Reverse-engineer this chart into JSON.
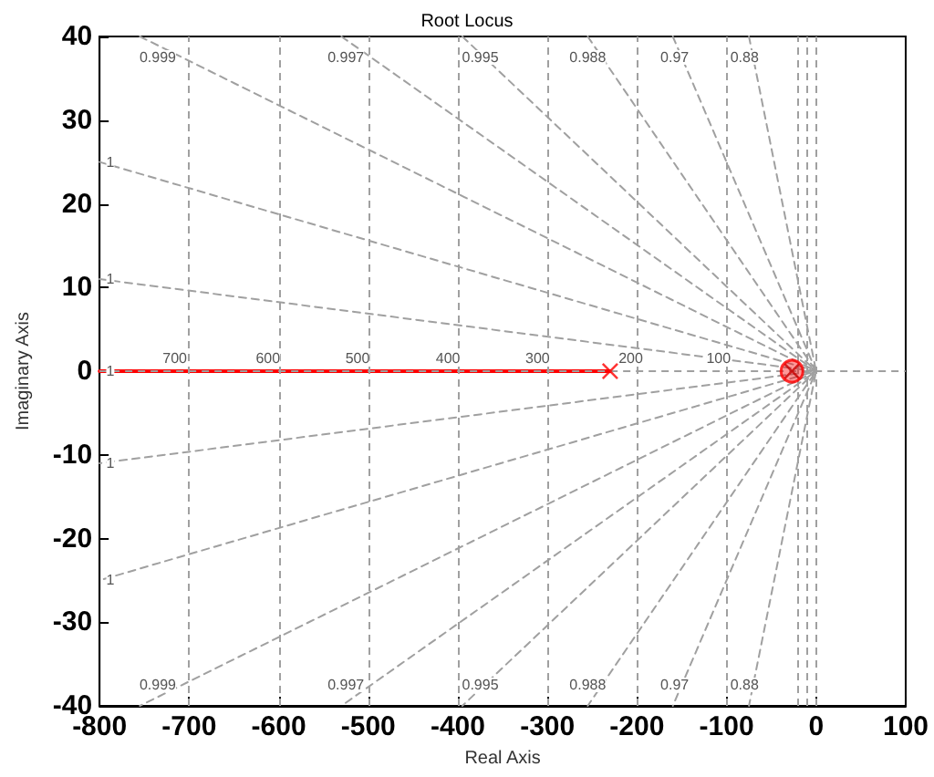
{
  "chart_data": {
    "type": "line",
    "title": "Root Locus",
    "xlabel": "Real Axis",
    "ylabel": "Imaginary Axis",
    "xlim": [
      -800,
      100
    ],
    "xticks": [
      -800,
      -700,
      -600,
      -500,
      -400,
      -300,
      -200,
      -100,
      0,
      100
    ],
    "ylim": [
      -40,
      40
    ],
    "yticks": [
      -40,
      -30,
      -20,
      -10,
      0,
      10,
      20,
      30,
      40
    ],
    "grid": false,
    "series": [
      {
        "type": "line",
        "color": "#a0a0a0",
        "line_style": "dashed",
        "marker": "none",
        "x": [
          -755,
          0,
          -755
        ],
        "values": [
          40,
          0,
          -40
        ]
      },
      {
        "type": "line",
        "color": "#a0a0a0",
        "line_style": "dashed",
        "marker": "none",
        "x": [
          -530,
          0,
          -530
        ],
        "values": [
          40,
          0,
          -40
        ]
      },
      {
        "type": "line",
        "color": "#a0a0a0",
        "line_style": "dashed",
        "marker": "none",
        "x": [
          -395,
          0,
          -395
        ],
        "values": [
          40,
          0,
          -40
        ]
      },
      {
        "type": "line",
        "color": "#a0a0a0",
        "line_style": "dashed",
        "marker": "none",
        "x": [
          -255,
          0,
          -255
        ],
        "values": [
          40,
          0,
          -40
        ]
      },
      {
        "type": "line",
        "color": "#a0a0a0",
        "line_style": "dashed",
        "marker": "none",
        "x": [
          -160,
          0,
          -160
        ],
        "values": [
          40,
          0,
          -40
        ]
      },
      {
        "type": "line",
        "color": "#a0a0a0",
        "line_style": "dashed",
        "marker": "none",
        "x": [
          -75,
          0,
          -75
        ],
        "values": [
          40,
          0,
          -40
        ]
      },
      {
        "type": "line",
        "color": "#a0a0a0",
        "line_style": "dashed",
        "marker": "none",
        "x": [
          -800,
          0,
          -800
        ],
        "values": [
          25,
          0,
          -25
        ]
      },
      {
        "type": "line",
        "color": "#a0a0a0",
        "line_style": "dashed",
        "marker": "none",
        "x": [
          -800,
          0,
          -800
        ],
        "values": [
          11,
          0,
          -11
        ]
      },
      {
        "type": "line",
        "color": "#ff0000",
        "line_style": "solid",
        "marker": "none",
        "x": [
          -800,
          -230
        ],
        "values": [
          0,
          0
        ]
      },
      {
        "type": "scatter",
        "color": "#ff0000",
        "marker": "cross",
        "x": [
          -230
        ],
        "values": [
          0
        ]
      },
      {
        "type": "scatter",
        "color": "#ff0000",
        "marker": "circle",
        "x": [
          -27
        ],
        "values": [
          0
        ]
      },
      {
        "type": "scatter",
        "color": "#a00000",
        "marker": "cross",
        "x": [
          -27
        ],
        "values": [
          0
        ]
      }
    ],
    "ref_lines": [
      {
        "axis": "y",
        "value": 0,
        "color": "#a0a0a0",
        "line_style": "dashed"
      },
      {
        "axis": "x",
        "value": -700,
        "color": "#a0a0a0",
        "line_style": "dashed"
      },
      {
        "axis": "x",
        "value": -600,
        "color": "#a0a0a0",
        "line_style": "dashed"
      },
      {
        "axis": "x",
        "value": -500,
        "color": "#a0a0a0",
        "line_style": "dashed"
      },
      {
        "axis": "x",
        "value": -400,
        "color": "#a0a0a0",
        "line_style": "dashed"
      },
      {
        "axis": "x",
        "value": -300,
        "color": "#a0a0a0",
        "line_style": "dashed"
      },
      {
        "axis": "x",
        "value": -200,
        "color": "#a0a0a0",
        "line_style": "dashed"
      },
      {
        "axis": "x",
        "value": -100,
        "color": "#a0a0a0",
        "line_style": "dashed"
      },
      {
        "axis": "x",
        "value": -20,
        "color": "#a0a0a0",
        "line_style": "dashed"
      },
      {
        "axis": "x",
        "value": -10,
        "color": "#a0a0a0",
        "line_style": "dashed"
      },
      {
        "axis": "x",
        "value": 0,
        "color": "#a0a0a0",
        "line_style": "dashed"
      }
    ],
    "annotations": [
      {
        "text": "0.999",
        "x": -735,
        "y": 37.5
      },
      {
        "text": "0.997",
        "x": -525,
        "y": 37.5
      },
      {
        "text": "0.995",
        "x": -375,
        "y": 37.5
      },
      {
        "text": "0.988",
        "x": -255,
        "y": 37.5
      },
      {
        "text": "0.97",
        "x": -158,
        "y": 37.5
      },
      {
        "text": "0.88",
        "x": -80,
        "y": 37.5
      },
      {
        "text": "0.999",
        "x": -735,
        "y": -37.5
      },
      {
        "text": "0.997",
        "x": -525,
        "y": -37.5
      },
      {
        "text": "0.995",
        "x": -375,
        "y": -37.5
      },
      {
        "text": "0.988",
        "x": -255,
        "y": -37.5
      },
      {
        "text": "0.97",
        "x": -158,
        "y": -37.5
      },
      {
        "text": "0.88",
        "x": -80,
        "y": -37.5
      },
      {
        "text": "1",
        "x": -788,
        "y": 25
      },
      {
        "text": "1",
        "x": -788,
        "y": 11
      },
      {
        "text": "1",
        "x": -788,
        "y": 0
      },
      {
        "text": "1",
        "x": -788,
        "y": -11
      },
      {
        "text": "1",
        "x": -788,
        "y": -25
      },
      {
        "text": "700",
        "x": -716,
        "y": 1.5
      },
      {
        "text": "600",
        "x": -612,
        "y": 1.5
      },
      {
        "text": "500",
        "x": -512,
        "y": 1.5
      },
      {
        "text": "400",
        "x": -411,
        "y": 1.5
      },
      {
        "text": "300",
        "x": -311,
        "y": 1.5
      },
      {
        "text": "200",
        "x": -207,
        "y": 1.5
      },
      {
        "text": "100",
        "x": -109,
        "y": 1.5
      }
    ]
  }
}
